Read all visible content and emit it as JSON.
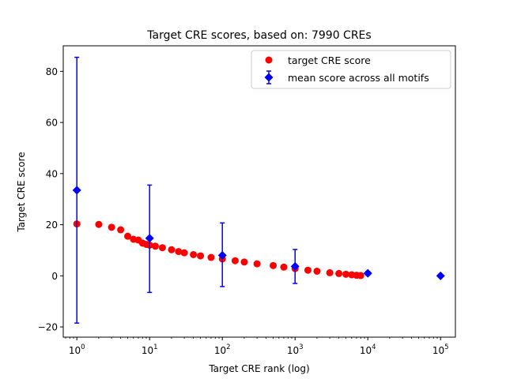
{
  "chart_data": {
    "type": "scatter",
    "title": "Target CRE scores, based on: 7990 CREs",
    "xlabel": "Target CRE rank (log)",
    "ylabel": "Target CRE score",
    "xscale": "log",
    "xlim": [
      0.65,
      160000
    ],
    "ylim": [
      -24,
      90
    ],
    "xticks": [
      {
        "value": 1,
        "base": "10",
        "exp": "0"
      },
      {
        "value": 10,
        "base": "10",
        "exp": "1"
      },
      {
        "value": 100,
        "base": "10",
        "exp": "2"
      },
      {
        "value": 1000,
        "base": "10",
        "exp": "3"
      },
      {
        "value": 10000,
        "base": "10",
        "exp": "4"
      },
      {
        "value": 100000,
        "base": "10",
        "exp": "5"
      }
    ],
    "yticks": [
      {
        "value": -20,
        "label": "−20"
      },
      {
        "value": 0,
        "label": "0"
      },
      {
        "value": 20,
        "label": "20"
      },
      {
        "value": 40,
        "label": "40"
      },
      {
        "value": 60,
        "label": "60"
      },
      {
        "value": 80,
        "label": "80"
      }
    ],
    "grid": false,
    "legend_position": "top-right",
    "series": [
      {
        "name": "target CRE score",
        "marker": "circle",
        "color": "#ff0000",
        "points": [
          [
            1,
            20.3
          ],
          [
            2,
            20.1
          ],
          [
            3,
            19.0
          ],
          [
            4,
            18.0
          ],
          [
            5,
            15.5
          ],
          [
            6,
            14.3
          ],
          [
            7,
            14.0
          ],
          [
            8,
            12.8
          ],
          [
            9,
            12.3
          ],
          [
            10,
            12.0
          ],
          [
            12,
            11.6
          ],
          [
            15,
            11.0
          ],
          [
            20,
            10.2
          ],
          [
            25,
            9.5
          ],
          [
            30,
            9.0
          ],
          [
            40,
            8.3
          ],
          [
            50,
            7.8
          ],
          [
            70,
            7.2
          ],
          [
            100,
            6.6
          ],
          [
            150,
            5.9
          ],
          [
            200,
            5.4
          ],
          [
            300,
            4.7
          ],
          [
            500,
            4.0
          ],
          [
            700,
            3.4
          ],
          [
            1000,
            2.8
          ],
          [
            1500,
            2.2
          ],
          [
            2000,
            1.8
          ],
          [
            3000,
            1.2
          ],
          [
            4000,
            0.9
          ],
          [
            5000,
            0.6
          ],
          [
            6000,
            0.4
          ],
          [
            7000,
            0.2
          ],
          [
            7990,
            0.1
          ]
        ]
      },
      {
        "name": "mean score across all motifs",
        "marker": "diamond",
        "color": "#0000ff",
        "errorbars": true,
        "points": [
          {
            "x": 1,
            "y": 33.5,
            "yerr_low": -18.5,
            "yerr_high": 85.5
          },
          {
            "x": 10,
            "y": 14.7,
            "yerr_low": -6.5,
            "yerr_high": 35.5
          },
          {
            "x": 100,
            "y": 8.0,
            "yerr_low": -4.2,
            "yerr_high": 20.7
          },
          {
            "x": 1000,
            "y": 3.7,
            "yerr_low": -3.0,
            "yerr_high": 10.3
          },
          {
            "x": 10000,
            "y": 1.0,
            "yerr_low": 0.3,
            "yerr_high": 1.7
          },
          {
            "x": 100000,
            "y": 0.0,
            "yerr_low": 0.0,
            "yerr_high": 0.0
          }
        ]
      }
    ]
  }
}
